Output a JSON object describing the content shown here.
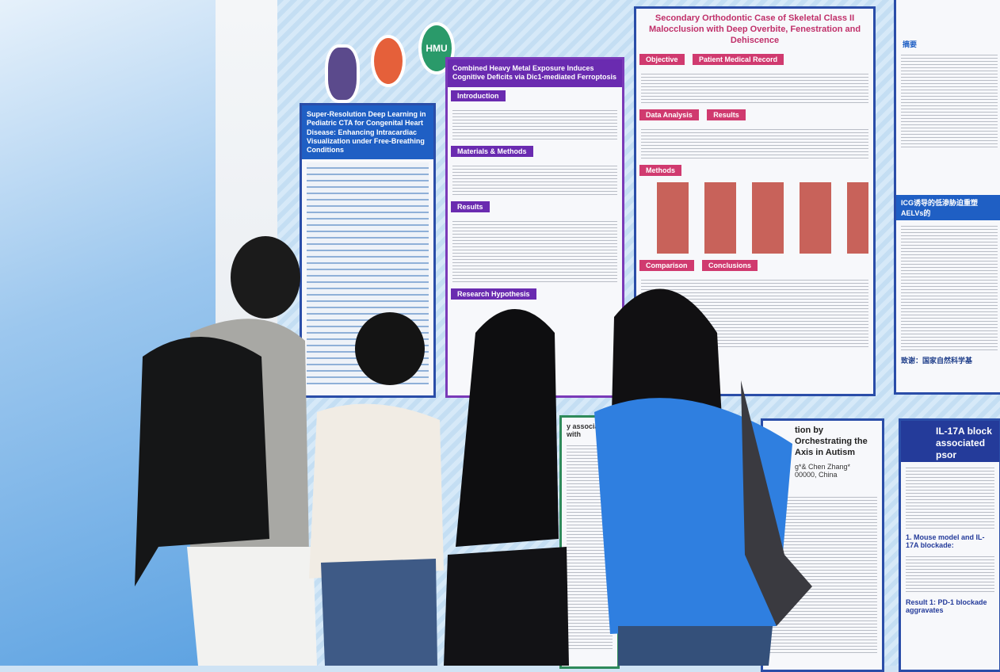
{
  "posters": {
    "p1": {
      "title": "Super-Resolution Deep Learning in Pediatric CTA for Congenital Heart Disease: Enhancing Intracardiac Visualization under Free-Breathing Conditions"
    },
    "p2": {
      "title": "Combined Heavy Metal Exposure Induces Cognitive Deficits via Dic1-mediated Ferroptosis",
      "sections": [
        "Introduction",
        "Materials & Methods",
        "Results",
        "Research Hypothesis"
      ]
    },
    "p3": {
      "title": "Secondary Orthodontic Case of Skeletal Class II Malocclusion with Deep Overbite, Fenestration and Dehiscence",
      "sections": [
        "Objective",
        "Patient Medical Record",
        "Data Analysis",
        "Results",
        "Methods",
        "Comparison",
        "Conclusions"
      ]
    },
    "p4": {
      "abstract_label": "摘要",
      "heading": "ICG诱导的低渗胁迫重塑AELVs的",
      "ack": "致谢：国家自然科学基"
    },
    "p5": {
      "title": "tion by Orchestrating the Axis in Autism",
      "authors": "g*& Chen Zhang*",
      "address": "00000, China"
    },
    "p6": {
      "title": "IL-17A block associated psor",
      "item1": "1. Mouse model and IL-17A blockade:",
      "result1": "Result 1: PD-1 blockade aggravates"
    },
    "p7": {
      "title": "y associated with"
    }
  },
  "logos": [
    "HMU",
    "",
    ""
  ],
  "colors": {
    "board": "#d6e9f8",
    "poster_border": "#2a4da8",
    "section_pink": "#d03a6f",
    "purple": "#6a2bb0"
  }
}
